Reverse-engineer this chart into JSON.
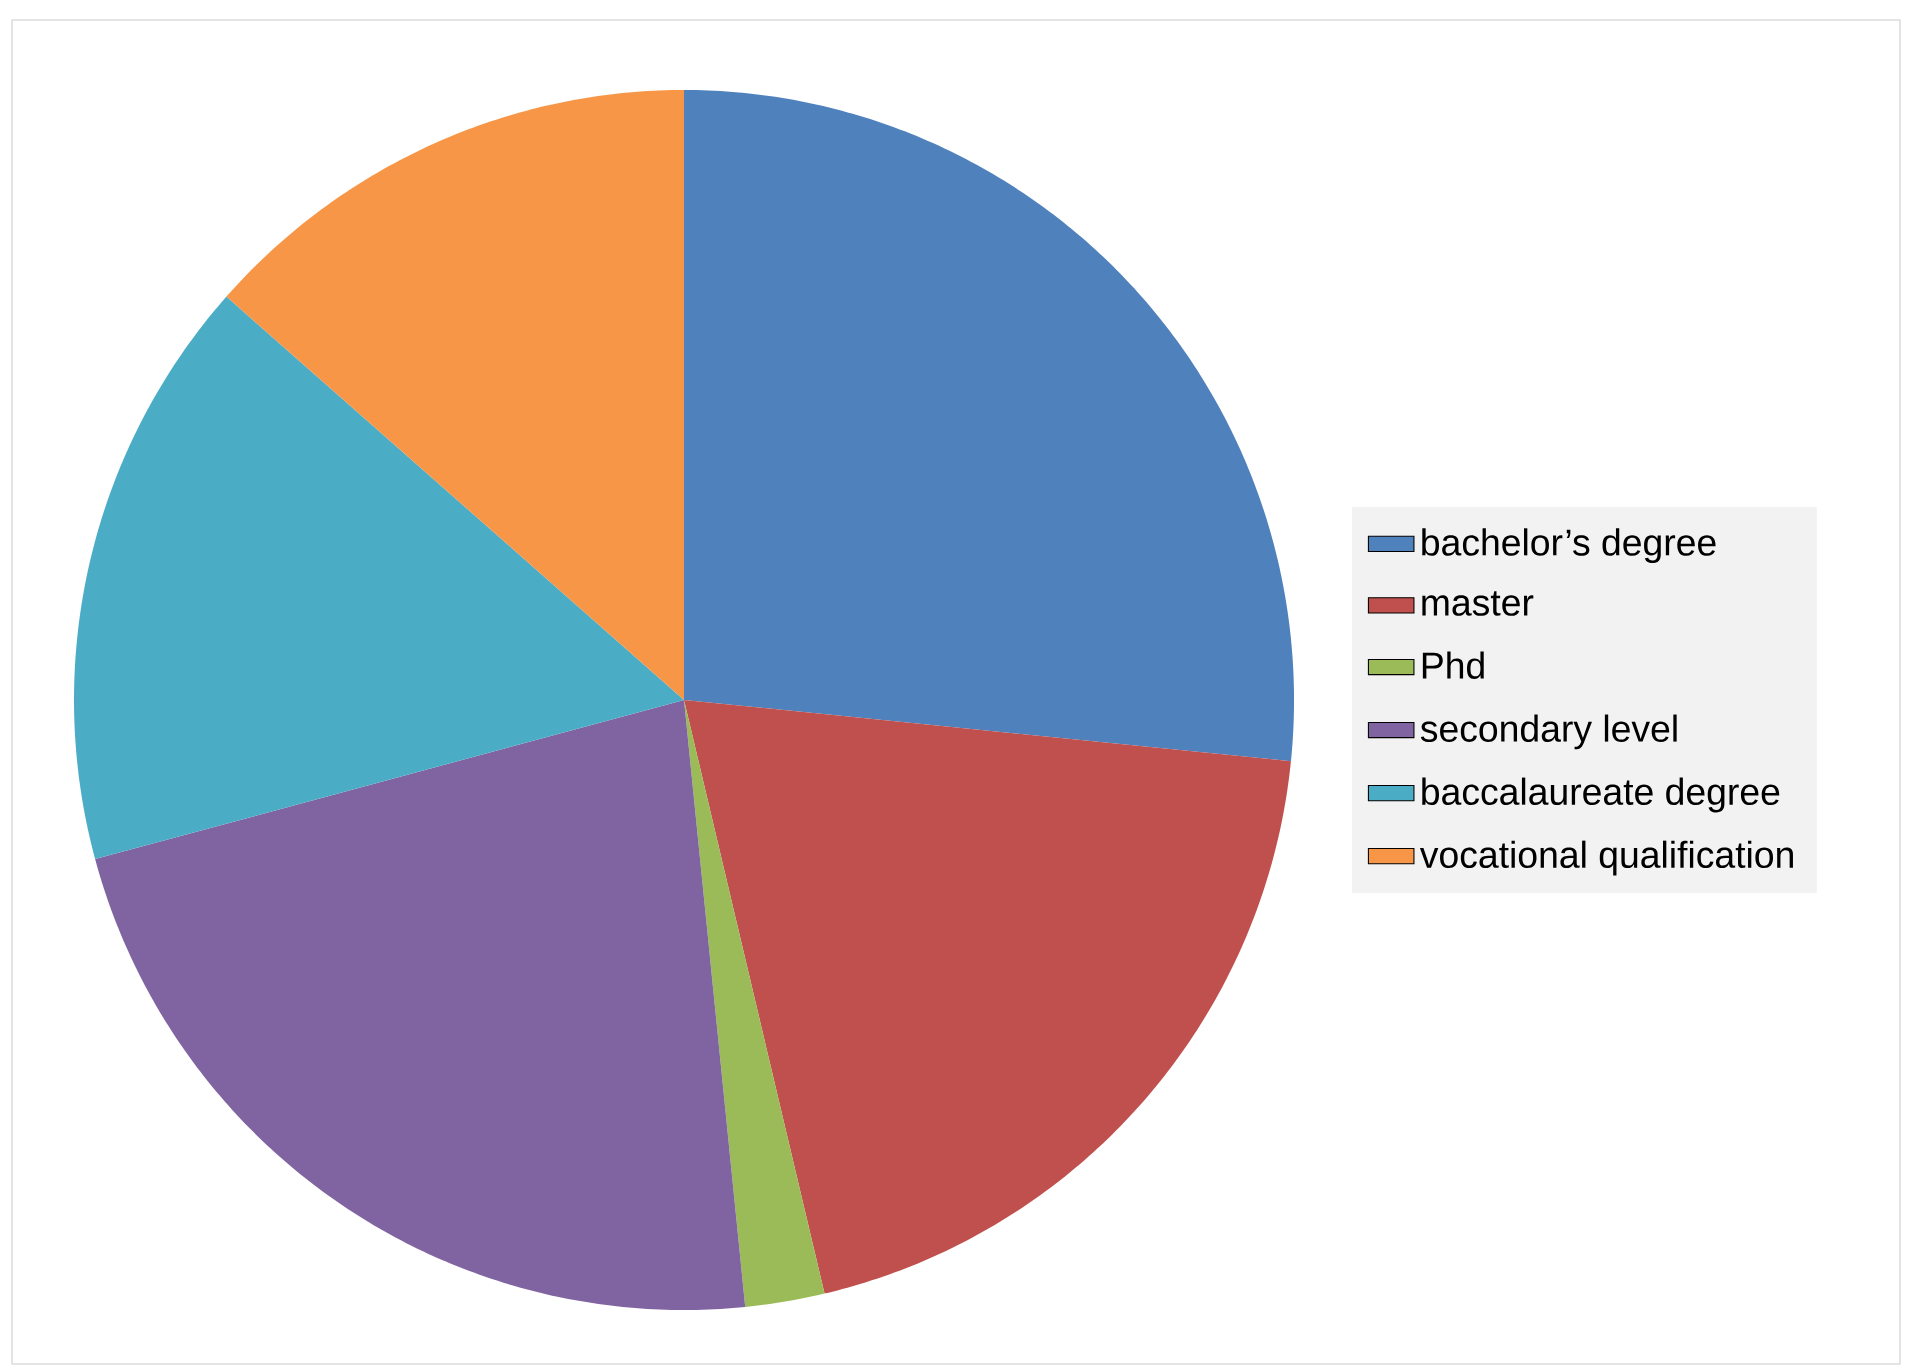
{
  "chart_data": {
    "type": "pie",
    "categories": [
      "bachelor’s degree",
      "master",
      "Phd",
      "secondary level",
      "baccalaureate degree",
      "vocational qualification"
    ],
    "values": [
      26.6,
      19.7,
      2.1,
      22.4,
      15.7,
      13.5
    ],
    "colors": [
      "#4f81bd",
      "#c0504d",
      "#9bbb59",
      "#8064a2",
      "#4bacc6",
      "#f79646"
    ],
    "legend": "right"
  }
}
